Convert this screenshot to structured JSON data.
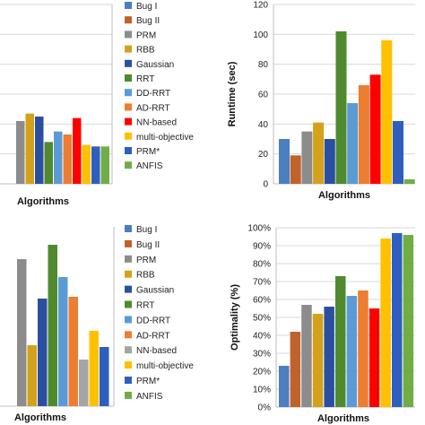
{
  "colors": {
    "Bug I": "#4a7fc1",
    "Bug II": "#c0622c",
    "PRM": "#8c8c8c",
    "RBB": "#d4a11a",
    "Gaussian": "#2b4fa0",
    "RRT": "#4f8a2f",
    "DD-RRT": "#5b9bd5",
    "AD-RRT": "#ed7d31",
    "NN-based": "#ff0000",
    "multi-objective": "#ffc000",
    "PRM*": "#2e5fbf",
    "ANFIS": "#70ad47",
    "NN-based-alt": "#a5a5a5"
  },
  "legend_top": [
    "Bug I",
    "Bug II",
    "PRM",
    "RBB",
    "Gaussian",
    "RRT",
    "DD-RRT",
    "AD-RRT",
    "NN-based",
    "multi-objective",
    "PRM*",
    "ANFIS"
  ],
  "legend_bottom": [
    "Bug I",
    "Bug II",
    "PRM",
    "RBB",
    "Gaussian",
    "RRT",
    "DD-RRT",
    "AD-RRT",
    "NN-based",
    "multi-objective",
    "PRM*",
    "ANFIS"
  ],
  "chart_data": [
    {
      "type": "bar",
      "position": "top-left",
      "categories": [
        "Bug I",
        "Bug II",
        "PRM",
        "RBB",
        "Gaussian",
        "RRT",
        "DD-RRT",
        "AD-RRT",
        "NN-based",
        "multi-objective",
        "PRM*",
        "ANFIS"
      ],
      "values": [
        null,
        null,
        42,
        47,
        45,
        28,
        35,
        33,
        44,
        26,
        25,
        25
      ],
      "xlabel": "Algorithms",
      "ylabel": ""
    },
    {
      "type": "bar",
      "position": "top-right",
      "categories": [
        "Bug I",
        "Bug II",
        "PRM",
        "RBB",
        "Gaussian",
        "RRT",
        "DD-RRT",
        "AD-RRT",
        "NN-based",
        "multi-objective",
        "PRM*",
        "ANFIS"
      ],
      "values": [
        30,
        19,
        35,
        41,
        30,
        102,
        54,
        66,
        73,
        96,
        42,
        3
      ],
      "xlabel": "Algorithms",
      "ylabel": "Runtime (sec)",
      "ylim": [
        0,
        120
      ],
      "yticks": [
        0,
        20,
        40,
        60,
        80,
        100,
        120
      ]
    },
    {
      "type": "bar",
      "position": "bottom-left",
      "categories": [
        "Bug I",
        "Bug II",
        "PRM",
        "RBB",
        "Gaussian",
        "RRT",
        "DD-RRT",
        "AD-RRT",
        "NN-based",
        "multi-objective",
        "PRM*",
        "ANFIS"
      ],
      "values": [
        null,
        null,
        82,
        34,
        60,
        90,
        72,
        61,
        26,
        42,
        33,
        null
      ],
      "xlabel": "Algorithms",
      "ylabel": ""
    },
    {
      "type": "bar",
      "position": "bottom-right",
      "categories": [
        "Bug I",
        "Bug II",
        "PRM",
        "RBB",
        "Gaussian",
        "RRT",
        "DD-RRT",
        "AD-RRT",
        "NN-based",
        "multi-objective",
        "PRM*",
        "ANFIS"
      ],
      "values": [
        23,
        42,
        57,
        52,
        56,
        73,
        62,
        65,
        55,
        94,
        97,
        96
      ],
      "xlabel": "Algorithms",
      "ylabel": "Optimality (%)",
      "ylim": [
        0,
        100
      ],
      "yticks": [
        "0%",
        "10%",
        "20%",
        "30%",
        "40%",
        "50%",
        "60%",
        "70%",
        "80%",
        "90%",
        "100%"
      ]
    }
  ]
}
